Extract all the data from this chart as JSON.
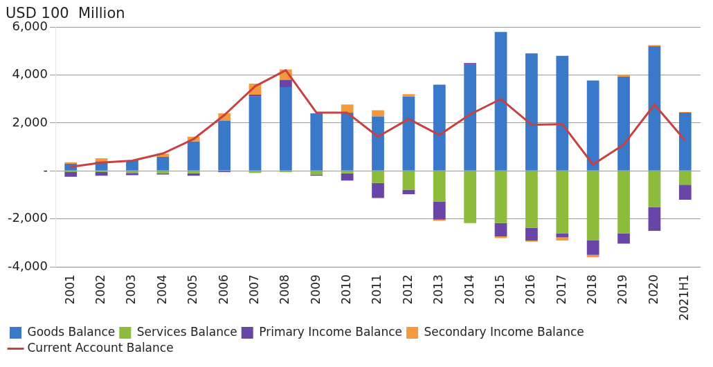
{
  "chart_data": {
    "type": "bar",
    "title": "USD 100  Million",
    "stacked": true,
    "categories": [
      "2001",
      "2002",
      "2003",
      "2004",
      "2005",
      "2006",
      "2007",
      "2008",
      "2009",
      "2010",
      "2011",
      "2012",
      "2013",
      "2014",
      "2015",
      "2016",
      "2017",
      "2018",
      "2019",
      "2020",
      "2021H1"
    ],
    "series": [
      {
        "name": "Goods Balance",
        "color": "#3a78c9",
        "values": [
          300,
          400,
          440,
          590,
          1230,
          2100,
          3100,
          3500,
          2400,
          2430,
          2270,
          3100,
          3600,
          4430,
          5800,
          4900,
          4800,
          3770,
          3930,
          5200,
          2430
        ]
      },
      {
        "name": "Services Balance",
        "color": "#8dbb3c",
        "values": [
          -50,
          -50,
          -80,
          -100,
          -100,
          null,
          -80,
          -50,
          -150,
          -100,
          -500,
          -780,
          -1270,
          -2170,
          -2170,
          -2370,
          -2600,
          -2900,
          -2600,
          -1500,
          -570
        ]
      },
      {
        "name": "Primary Income Balance",
        "color": "#6a45a8",
        "values": [
          -190,
          -150,
          -100,
          -50,
          -100,
          -50,
          80,
          300,
          -50,
          -300,
          -630,
          -190,
          -760,
          70,
          -560,
          -530,
          -170,
          -600,
          -430,
          -1000,
          -630
        ]
      },
      {
        "name": "Secondary Income Balance",
        "color": "#f59a3c",
        "values": [
          60,
          130,
          null,
          130,
          200,
          300,
          460,
          430,
          null,
          340,
          260,
          100,
          -50,
          null,
          -70,
          -50,
          -130,
          -100,
          70,
          50,
          30
        ]
      },
      {
        "name": "Current Account Balance",
        "type": "line",
        "color": "#c8403f",
        "values": [
          170,
          350,
          430,
          730,
          1330,
          2330,
          3530,
          4200,
          2430,
          2430,
          1430,
          2170,
          1500,
          2360,
          3000,
          1930,
          1950,
          270,
          1100,
          2770,
          1270
        ]
      }
    ],
    "ylim": [
      -4000,
      6000
    ],
    "yticks": [
      {
        "value": -4000,
        "label": "-4,000"
      },
      {
        "value": -2000,
        "label": "-2,000"
      },
      {
        "value": 0,
        "label": "-"
      },
      {
        "value": 2000,
        "label": "2,000"
      },
      {
        "value": 4000,
        "label": "4,000"
      },
      {
        "value": 6000,
        "label": "6,000"
      }
    ],
    "grid": "y",
    "legend": "bottom"
  }
}
